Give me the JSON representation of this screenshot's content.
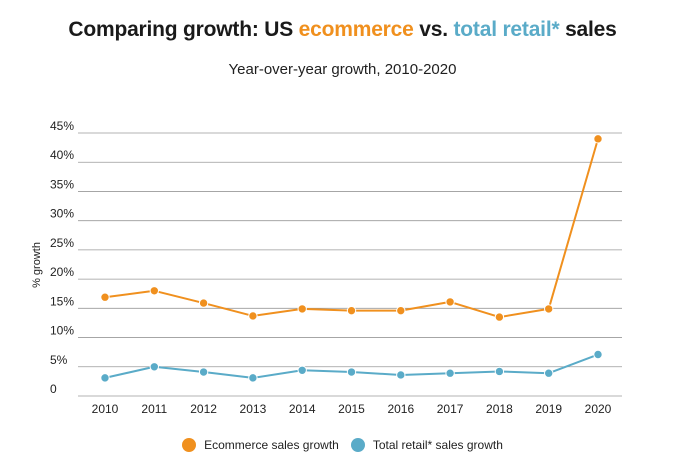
{
  "title": {
    "part1": "Comparing growth: US ",
    "part2": "ecommerce",
    "part3": " vs. ",
    "part4": "total retail*",
    "part5": " sales"
  },
  "colors": {
    "ecommerce": "#f0901e",
    "retail": "#5aabc8",
    "grid": "#9a9a9a"
  },
  "chart_data": {
    "type": "line",
    "title": "Comparing growth: US ecommerce vs. total retail* sales",
    "subtitle": "Year-over-year growth, 2010-2020",
    "xlabel": "",
    "ylabel": "% growth",
    "categories": [
      "2010",
      "2011",
      "2012",
      "2013",
      "2014",
      "2015",
      "2016",
      "2017",
      "2018",
      "2019",
      "2020"
    ],
    "yticks": [
      "0",
      "5%",
      "10%",
      "15%",
      "20%",
      "25%",
      "30%",
      "35%",
      "40%",
      "45%"
    ],
    "ylim": [
      0,
      45
    ],
    "grid": true,
    "legend_position": "bottom",
    "series": [
      {
        "name": "Ecommerce sales growth",
        "values": [
          16.9,
          18.0,
          15.9,
          13.7,
          14.9,
          14.6,
          14.6,
          16.1,
          13.5,
          14.9,
          44.0
        ]
      },
      {
        "name": "Total retail* sales growth",
        "values": [
          3.1,
          5.0,
          4.1,
          3.1,
          4.4,
          4.1,
          3.6,
          3.9,
          4.2,
          3.9,
          7.1
        ]
      }
    ]
  }
}
